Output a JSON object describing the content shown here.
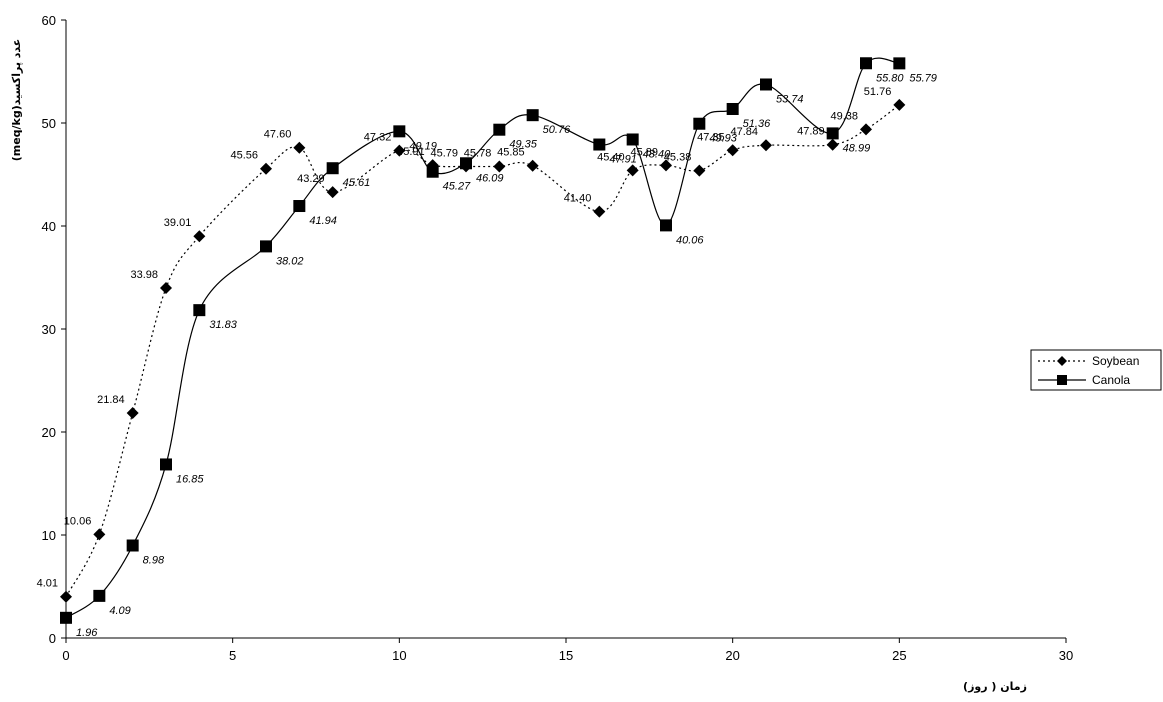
{
  "chart_data": {
    "type": "line",
    "title": "",
    "xlabel": "زمان ( روز)",
    "ylabel": "(meq/kg)عدد پراکسید",
    "xlim": [
      0,
      30
    ],
    "ylim": [
      0,
      60
    ],
    "xticks": [
      0,
      5,
      10,
      15,
      20,
      25,
      30
    ],
    "yticks": [
      0,
      10,
      20,
      30,
      40,
      50,
      60
    ],
    "grid": false,
    "legend_position": "right",
    "series": [
      {
        "name": "Soybean",
        "marker": "diamond",
        "line_style": "dotted",
        "x": [
          0,
          1,
          2,
          3,
          4,
          6,
          7,
          8,
          10,
          11,
          12,
          13,
          14,
          16,
          17,
          18,
          19,
          20,
          21,
          23,
          24,
          25
        ],
        "values": [
          4.01,
          10.06,
          21.84,
          33.98,
          39.01,
          45.56,
          47.6,
          43.29,
          47.32,
          45.91,
          45.79,
          45.78,
          45.85,
          41.4,
          45.4,
          45.89,
          45.38,
          47.35,
          47.84,
          47.89,
          49.38,
          51.76
        ],
        "labels": [
          "4.01",
          "10.06",
          "21.84",
          "33.98",
          "39.01",
          "45.56",
          "47.60",
          "43.29",
          "47.32",
          "45.91",
          "45.79",
          "45.78",
          "45.85",
          "41.40",
          "45.40",
          "45.89",
          "45.38",
          "47.35",
          "47.84",
          "47.89",
          "49.38",
          "51.76"
        ]
      },
      {
        "name": "Canola",
        "marker": "square",
        "line_style": "solid",
        "x": [
          0,
          1,
          2,
          3,
          4,
          6,
          7,
          8,
          10,
          11,
          12,
          13,
          14,
          16,
          17,
          18,
          19,
          20,
          21,
          23,
          24,
          25
        ],
        "values": [
          1.96,
          4.09,
          8.98,
          16.85,
          31.83,
          38.02,
          41.94,
          45.61,
          49.19,
          45.27,
          46.09,
          49.35,
          50.76,
          47.91,
          48.4,
          40.06,
          49.93,
          51.36,
          53.74,
          48.99,
          55.8,
          55.79
        ],
        "labels": [
          "1.96",
          "4.09",
          "8.98",
          "16.85",
          "31.83",
          "38.02",
          "41.94",
          "45.61",
          "49.19",
          "45.27",
          "46.09",
          "49.35",
          "50.76",
          "47.91",
          "48.40",
          "40.06",
          "49.93",
          "51.36",
          "53.74",
          "48.99",
          "55.80",
          "55.79"
        ]
      }
    ]
  }
}
